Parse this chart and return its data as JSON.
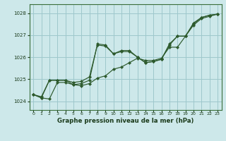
{
  "xlabel": "Graphe pression niveau de la mer (hPa)",
  "ylim": [
    1023.6,
    1028.4
  ],
  "xlim": [
    -0.5,
    23.5
  ],
  "yticks": [
    1024,
    1025,
    1026,
    1027,
    1028
  ],
  "xticks": [
    0,
    1,
    2,
    3,
    4,
    5,
    6,
    7,
    8,
    9,
    10,
    11,
    12,
    13,
    14,
    15,
    16,
    17,
    18,
    19,
    20,
    21,
    22,
    23
  ],
  "bg_color": "#cde8ea",
  "grid_color": "#9ec8cc",
  "line_color": "#2d5a2d",
  "series1": [
    1024.3,
    1024.15,
    1024.1,
    1024.85,
    1024.85,
    1024.75,
    1024.7,
    1024.8,
    1025.05,
    1025.15,
    1025.45,
    1025.55,
    1025.75,
    1025.95,
    1025.85,
    1025.85,
    1025.95,
    1026.45,
    1026.45,
    1026.95,
    1027.45,
    1027.75,
    1027.85,
    1027.95
  ],
  "series2": [
    1024.3,
    1024.2,
    1024.95,
    1024.95,
    1024.95,
    1024.85,
    1024.9,
    1025.1,
    1026.55,
    1026.5,
    1026.15,
    1026.25,
    1026.25,
    1026.0,
    1025.75,
    1025.8,
    1025.9,
    1026.55,
    1026.95,
    1026.95,
    1027.55,
    1027.8,
    1027.9,
    1027.95
  ],
  "series3": [
    1024.3,
    1024.15,
    1024.95,
    1024.95,
    1024.95,
    1024.75,
    1024.8,
    1024.95,
    1026.6,
    1026.55,
    1026.15,
    1026.3,
    1026.3,
    1026.0,
    1025.75,
    1025.8,
    1025.9,
    1026.6,
    1026.95,
    1026.95,
    1027.5,
    1027.8,
    1027.9,
    1027.95
  ]
}
